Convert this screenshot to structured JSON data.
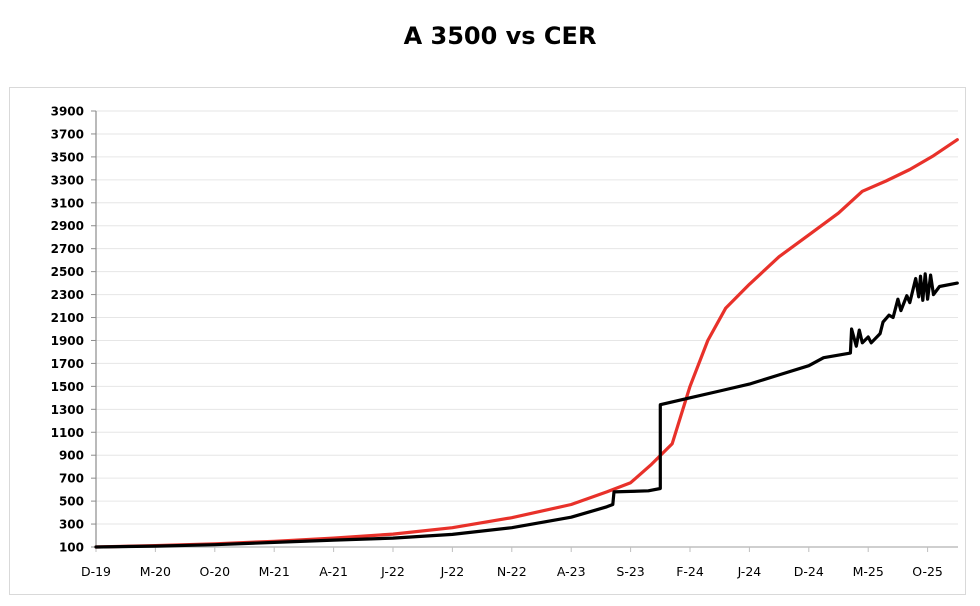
{
  "chart_data": {
    "type": "line",
    "title": "A 3500 vs CER",
    "xlabel": "",
    "ylabel": "",
    "ylim": [
      100,
      3900
    ],
    "grid": true,
    "legend": "none",
    "y_ticks": [
      "100",
      "300",
      "500",
      "700",
      "900",
      "1100",
      "1300",
      "1500",
      "1700",
      "1900",
      "2100",
      "2300",
      "2500",
      "2700",
      "2900",
      "3100",
      "3300",
      "3500",
      "3700",
      "3900"
    ],
    "x_ticks": [
      "D-19",
      "M-20",
      "O-20",
      "M-21",
      "A-21",
      "J-22",
      "J-22",
      "N-22",
      "A-23",
      "S-23",
      "F-24",
      "J-24",
      "D-24",
      "M-25",
      "O-25"
    ],
    "x_positions": [
      0,
      1,
      2,
      3,
      4,
      5,
      6,
      7,
      8,
      9,
      10,
      11,
      12,
      13,
      14
    ],
    "series": [
      {
        "name": "CER",
        "color": "#e8312a",
        "points": [
          [
            0,
            100
          ],
          [
            1,
            112
          ],
          [
            2,
            128
          ],
          [
            3,
            150
          ],
          [
            4,
            178
          ],
          [
            5,
            212
          ],
          [
            6,
            268
          ],
          [
            7,
            355
          ],
          [
            8,
            470
          ],
          [
            8.6,
            580
          ],
          [
            9,
            660
          ],
          [
            9.35,
            820
          ],
          [
            9.7,
            1000
          ],
          [
            10,
            1500
          ],
          [
            10.3,
            1900
          ],
          [
            10.6,
            2180
          ],
          [
            11,
            2390
          ],
          [
            11.5,
            2630
          ],
          [
            12,
            2820
          ],
          [
            12.5,
            3010
          ],
          [
            12.9,
            3200
          ],
          [
            13.3,
            3290
          ],
          [
            13.7,
            3390
          ],
          [
            14.1,
            3510
          ],
          [
            14.5,
            3650
          ]
        ]
      },
      {
        "name": "A 3500",
        "color": "#000000",
        "points": [
          [
            0,
            100
          ],
          [
            1,
            108
          ],
          [
            2,
            120
          ],
          [
            3,
            140
          ],
          [
            4,
            160
          ],
          [
            5,
            178
          ],
          [
            6,
            210
          ],
          [
            7,
            268
          ],
          [
            8,
            360
          ],
          [
            8.6,
            450
          ],
          [
            8.7,
            470
          ],
          [
            8.72,
            580
          ],
          [
            9,
            585
          ],
          [
            9.3,
            590
          ],
          [
            9.5,
            610
          ],
          [
            9.5,
            1340
          ],
          [
            10,
            1400
          ],
          [
            10.5,
            1460
          ],
          [
            11,
            1520
          ],
          [
            11.5,
            1600
          ],
          [
            12,
            1680
          ],
          [
            12.25,
            1750
          ],
          [
            12.7,
            1790
          ],
          [
            12.72,
            2000
          ],
          [
            12.8,
            1850
          ],
          [
            12.85,
            1990
          ],
          [
            12.9,
            1880
          ],
          [
            13,
            1930
          ],
          [
            13.05,
            1880
          ],
          [
            13.2,
            1960
          ],
          [
            13.25,
            2060
          ],
          [
            13.35,
            2120
          ],
          [
            13.42,
            2100
          ],
          [
            13.5,
            2260
          ],
          [
            13.55,
            2160
          ],
          [
            13.65,
            2290
          ],
          [
            13.7,
            2230
          ],
          [
            13.8,
            2440
          ],
          [
            13.85,
            2280
          ],
          [
            13.88,
            2460
          ],
          [
            13.92,
            2250
          ],
          [
            13.96,
            2480
          ],
          [
            14,
            2260
          ],
          [
            14.05,
            2470
          ],
          [
            14.1,
            2300
          ],
          [
            14.2,
            2370
          ],
          [
            14.5,
            2400
          ]
        ]
      }
    ]
  }
}
